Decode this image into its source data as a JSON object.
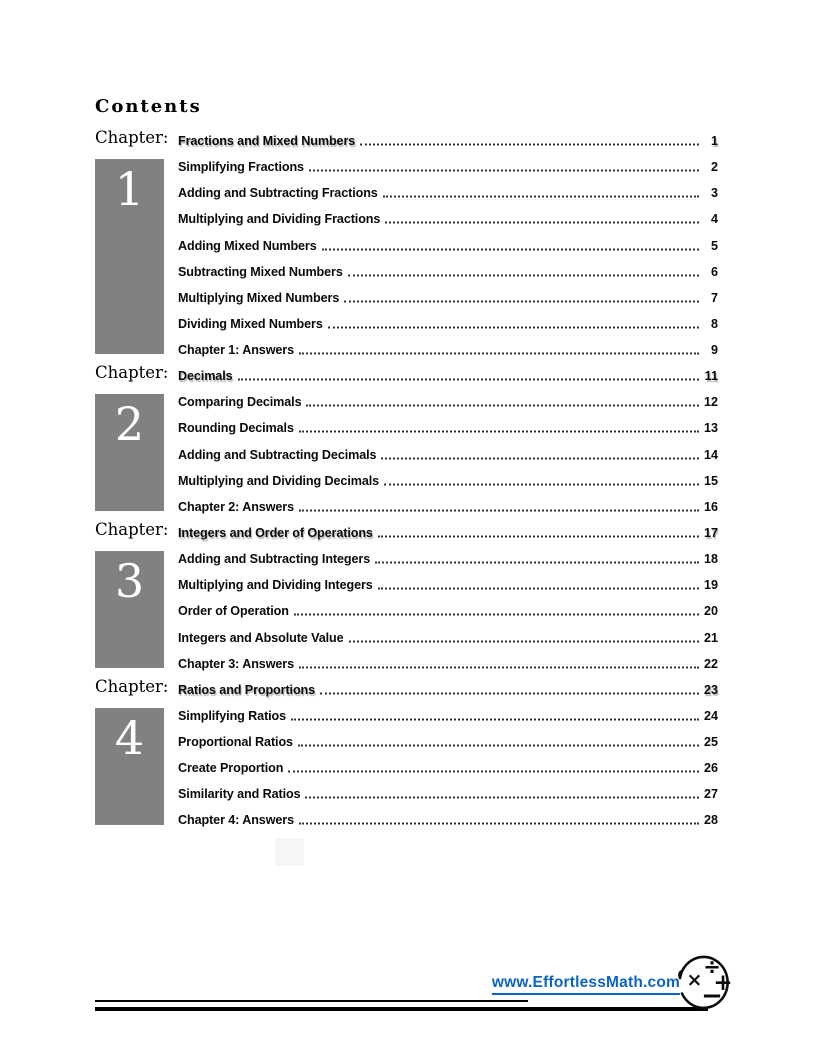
{
  "page": {
    "title": "Contents",
    "chapter_label": "Chapter:"
  },
  "colors": {
    "chapter_box_gray": "#818181",
    "link_blue": "#0b63c5",
    "leader_dots": "#333333"
  },
  "chapters": [
    {
      "number": "1",
      "heading": {
        "title": "Fractions and Mixed Numbers",
        "page": "1"
      },
      "entries": [
        {
          "title": "Simplifying Fractions",
          "page": "2"
        },
        {
          "title": "Adding and Subtracting Fractions",
          "page": "3"
        },
        {
          "title": "Multiplying and Dividing Fractions",
          "page": "4"
        },
        {
          "title": "Adding Mixed Numbers",
          "page": "5"
        },
        {
          "title": "Subtracting Mixed Numbers",
          "page": "6"
        },
        {
          "title": "Multiplying Mixed Numbers",
          "page": "7"
        },
        {
          "title": "Dividing Mixed Numbers",
          "page": "8"
        },
        {
          "title": "Chapter 1: Answers",
          "page": "9"
        }
      ]
    },
    {
      "number": "2",
      "heading": {
        "title": "Decimals",
        "page": "11"
      },
      "entries": [
        {
          "title": "Comparing Decimals",
          "page": "12"
        },
        {
          "title": "Rounding Decimals",
          "page": "13"
        },
        {
          "title": "Adding and Subtracting Decimals",
          "page": "14"
        },
        {
          "title": "Multiplying and Dividing Decimals",
          "page": "15"
        },
        {
          "title": "Chapter 2: Answers",
          "page": "16"
        }
      ]
    },
    {
      "number": "3",
      "heading": {
        "title": "Integers and Order of Operations",
        "page": "17"
      },
      "entries": [
        {
          "title": "Adding and Subtracting Integers",
          "page": "18"
        },
        {
          "title": "Multiplying and Dividing Integers",
          "page": "19"
        },
        {
          "title": "Order of Operation",
          "page": "20"
        },
        {
          "title": "Integers and Absolute Value",
          "page": "21"
        },
        {
          "title": "Chapter 3: Answers",
          "page": "22"
        }
      ]
    },
    {
      "number": "4",
      "heading": {
        "title": "Ratios and Proportions",
        "page": "23"
      },
      "entries": [
        {
          "title": "Simplifying Ratios",
          "page": "24"
        },
        {
          "title": "Proportional Ratios",
          "page": "25"
        },
        {
          "title": "Create Proportion",
          "page": "26"
        },
        {
          "title": "Similarity and Ratios",
          "page": "27"
        },
        {
          "title": "Chapter 4: Answers",
          "page": "28"
        }
      ]
    }
  ],
  "footer": {
    "link": "www.EffortlessMath.com",
    "logo_symbols": {
      "multiply": "×",
      "divide": "÷",
      "plus": "+",
      "minus": "−"
    }
  }
}
